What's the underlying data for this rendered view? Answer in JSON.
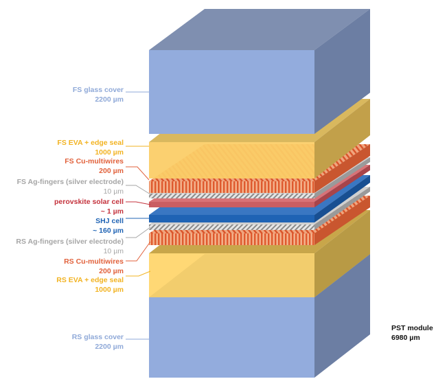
{
  "labels": {
    "fs_glass": {
      "name": "FS glass cover",
      "thickness": "2200 µm",
      "color": "#8fa9d8"
    },
    "fs_eva": {
      "name": "FS EVA + edge seal",
      "thickness": "1000 µm",
      "color": "#f2b322"
    },
    "fs_cu": {
      "name": "FS Cu-multiwires",
      "thickness": "200 µm",
      "color": "#e1613b"
    },
    "fs_ag": {
      "name": "FS Ag-fingers (silver electrode)",
      "thickness": "10 µm",
      "color": "#a6a6a6"
    },
    "perovskite": {
      "name": "perovskite solar cell",
      "thickness": "~ 1 µm",
      "color": "#c4323c"
    },
    "shj": {
      "name": "SHJ cell",
      "thickness": "~ 160 µm",
      "color": "#1f63b4"
    },
    "rs_ag": {
      "name": "RS Ag-fingers (silver electrode)",
      "thickness": "10 µm",
      "color": "#a6a6a6"
    },
    "rs_cu": {
      "name": "RS Cu-multiwires",
      "thickness": "200 µm",
      "color": "#e1613b"
    },
    "rs_eva": {
      "name": "RS EVA + edge seal",
      "thickness": "1000 µm",
      "color": "#f2b322"
    },
    "rs_glass": {
      "name": "RS glass cover",
      "thickness": "2200 µm",
      "color": "#8fa9d8"
    }
  },
  "module": {
    "name": "PST module",
    "thickness": "6980 µm"
  }
}
